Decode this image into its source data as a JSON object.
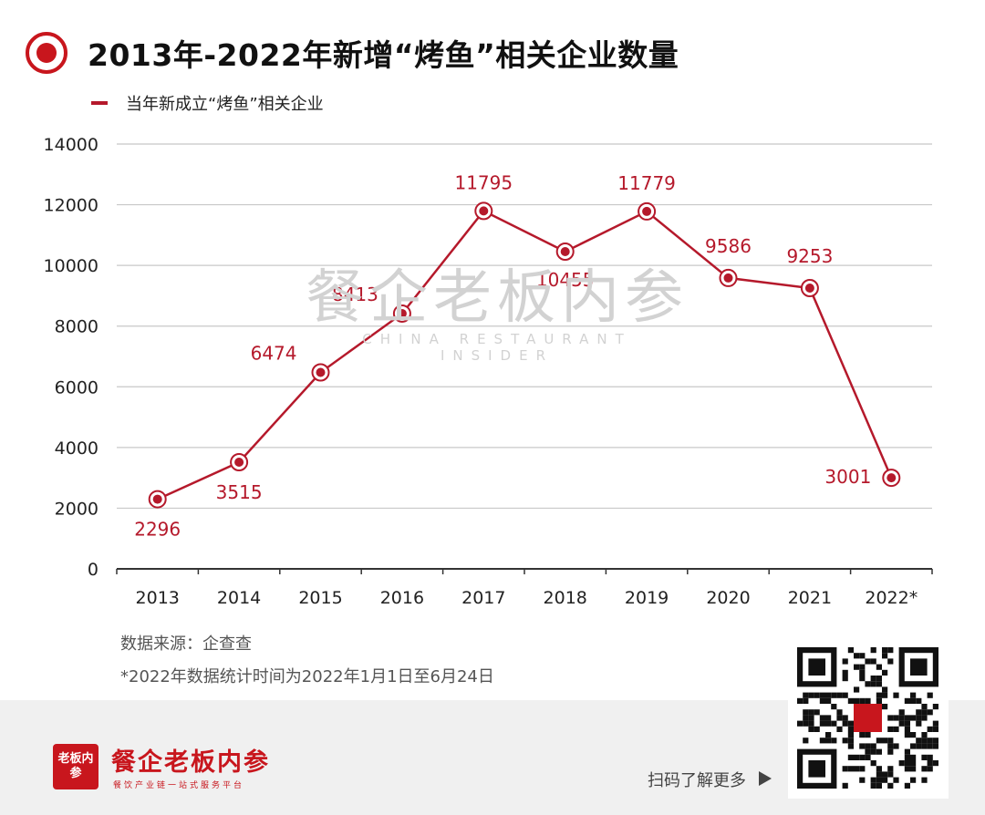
{
  "title": "2013年-2022年新增“烤鱼”相关企业数量",
  "watermark": {
    "main": "餐企老板内参",
    "sub": "CHINA RESTAURANT INSIDER"
  },
  "source": "数据来源：企查查",
  "note": "*2022年数据统计时间为2022年1月1日至6月24日",
  "footer": {
    "brand_name": "餐企老板内参",
    "brand_logo": "老板内参",
    "brand_slogan": "餐饮产业链一站式服务平台",
    "scan_text": "扫码了解更多"
  },
  "colors": {
    "accent": "#b5192b",
    "grid": "#c8c8c8",
    "footer_bg": "#f0f0f0"
  },
  "chart_data": {
    "type": "line",
    "categories": [
      "2013",
      "2014",
      "2015",
      "2016",
      "2017",
      "2018",
      "2019",
      "2020",
      "2021",
      "2022*"
    ],
    "series": [
      {
        "name": "当年新成立“烤鱼”相关企业",
        "values": [
          2296,
          3515,
          6474,
          8413,
          11795,
          10455,
          11779,
          9586,
          9253,
          3001
        ]
      }
    ],
    "ylim": [
      0,
      14000
    ],
    "yticks": [
      0,
      2000,
      4000,
      6000,
      8000,
      10000,
      12000,
      14000
    ],
    "grid": true,
    "legend": "top-left",
    "data_labels": true
  }
}
